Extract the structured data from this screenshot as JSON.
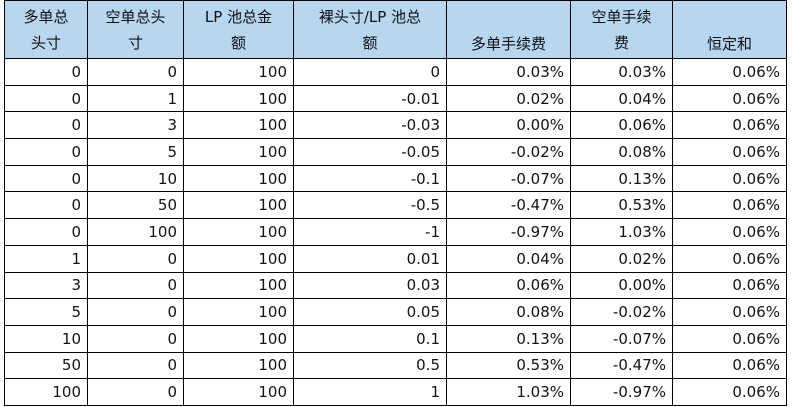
{
  "table": {
    "headers": [
      [
        "多单总",
        "头寸"
      ],
      [
        "空单总头",
        "寸"
      ],
      [
        "LP 池总金",
        "额"
      ],
      [
        "裸头寸/LP 池总",
        "额"
      ],
      [
        "多单手续费"
      ],
      [
        "空单手续",
        "费"
      ],
      [
        "恒定和"
      ]
    ],
    "rows": [
      [
        "0",
        "0",
        "100",
        "0",
        "0.03%",
        "0.03%",
        "0.06%"
      ],
      [
        "0",
        "1",
        "100",
        "-0.01",
        "0.02%",
        "0.04%",
        "0.06%"
      ],
      [
        "0",
        "3",
        "100",
        "-0.03",
        "0.00%",
        "0.06%",
        "0.06%"
      ],
      [
        "0",
        "5",
        "100",
        "-0.05",
        "-0.02%",
        "0.08%",
        "0.06%"
      ],
      [
        "0",
        "10",
        "100",
        "-0.1",
        "-0.07%",
        "0.13%",
        "0.06%"
      ],
      [
        "0",
        "50",
        "100",
        "-0.5",
        "-0.47%",
        "0.53%",
        "0.06%"
      ],
      [
        "0",
        "100",
        "100",
        "-1",
        "-0.97%",
        "1.03%",
        "0.06%"
      ],
      [
        "1",
        "0",
        "100",
        "0.01",
        "0.04%",
        "0.02%",
        "0.06%"
      ],
      [
        "3",
        "0",
        "100",
        "0.03",
        "0.06%",
        "0.00%",
        "0.06%"
      ],
      [
        "5",
        "0",
        "100",
        "0.05",
        "0.08%",
        "-0.02%",
        "0.06%"
      ],
      [
        "10",
        "0",
        "100",
        "0.1",
        "0.13%",
        "-0.07%",
        "0.06%"
      ],
      [
        "50",
        "0",
        "100",
        "0.5",
        "0.53%",
        "-0.47%",
        "0.06%"
      ],
      [
        "100",
        "0",
        "100",
        "1",
        "1.03%",
        "-0.97%",
        "0.06%"
      ]
    ]
  },
  "colors": {
    "header_bg": "#b7d6f0",
    "border": "#000000",
    "text": "#111111"
  }
}
